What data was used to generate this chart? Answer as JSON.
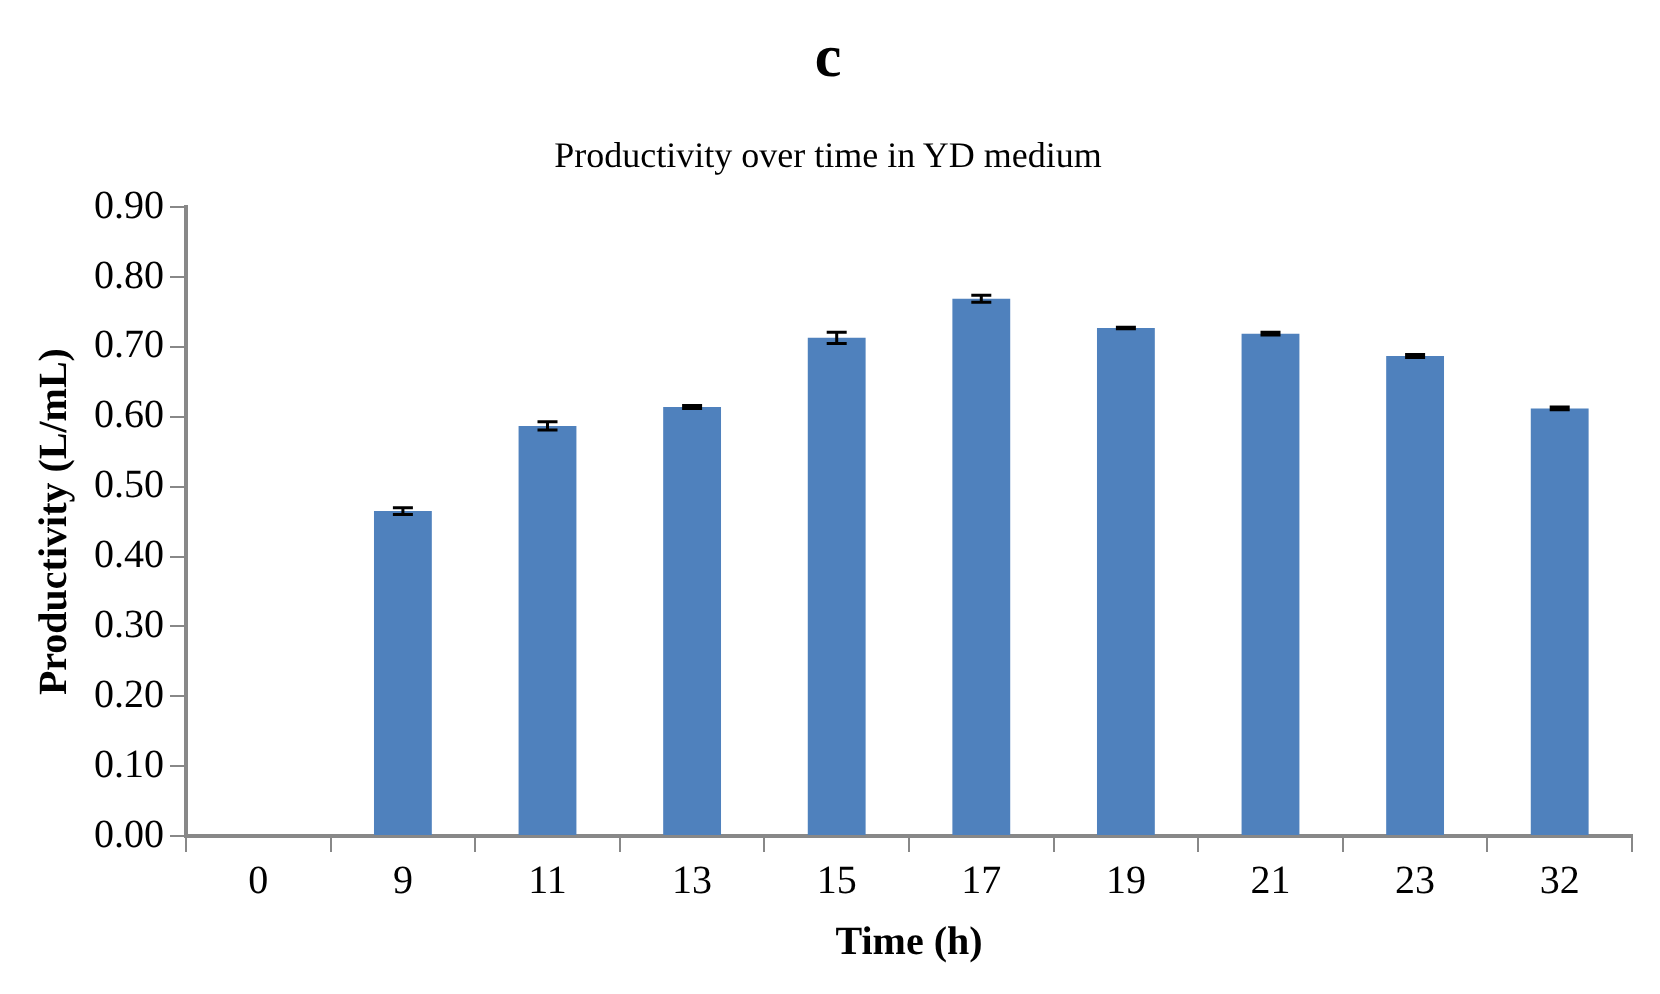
{
  "chart_data": {
    "type": "bar",
    "title": "c",
    "subtitle": "Productivity over time in YD medium",
    "xlabel": "Time (h)",
    "ylabel": "Productivity (L/mL)",
    "categories": [
      "0",
      "9",
      "11",
      "13",
      "15",
      "17",
      "19",
      "21",
      "23",
      "32"
    ],
    "values": [
      0,
      0.465,
      0.587,
      0.614,
      0.713,
      0.769,
      0.727,
      0.719,
      0.687,
      0.612
    ],
    "errors": [
      null,
      0.005,
      0.006,
      0.002,
      0.008,
      0.005,
      0.001,
      0.002,
      0.002,
      0.002
    ],
    "color": "#4f81bd",
    "ylim": [
      0,
      0.9
    ],
    "yticks": [
      {
        "value": 0,
        "label": "0.00"
      },
      {
        "value": 0.1,
        "label": "0.10"
      },
      {
        "value": 0.2,
        "label": "0.20"
      },
      {
        "value": 0.3,
        "label": "0.30"
      },
      {
        "value": 0.4,
        "label": "0.40"
      },
      {
        "value": 0.5,
        "label": "0.50"
      },
      {
        "value": 0.6,
        "label": "0.60"
      },
      {
        "value": 0.7,
        "label": "0.70"
      },
      {
        "value": 0.8,
        "label": "0.80"
      },
      {
        "value": 0.9,
        "label": "0.90"
      }
    ],
    "grid": false,
    "legend": false
  }
}
